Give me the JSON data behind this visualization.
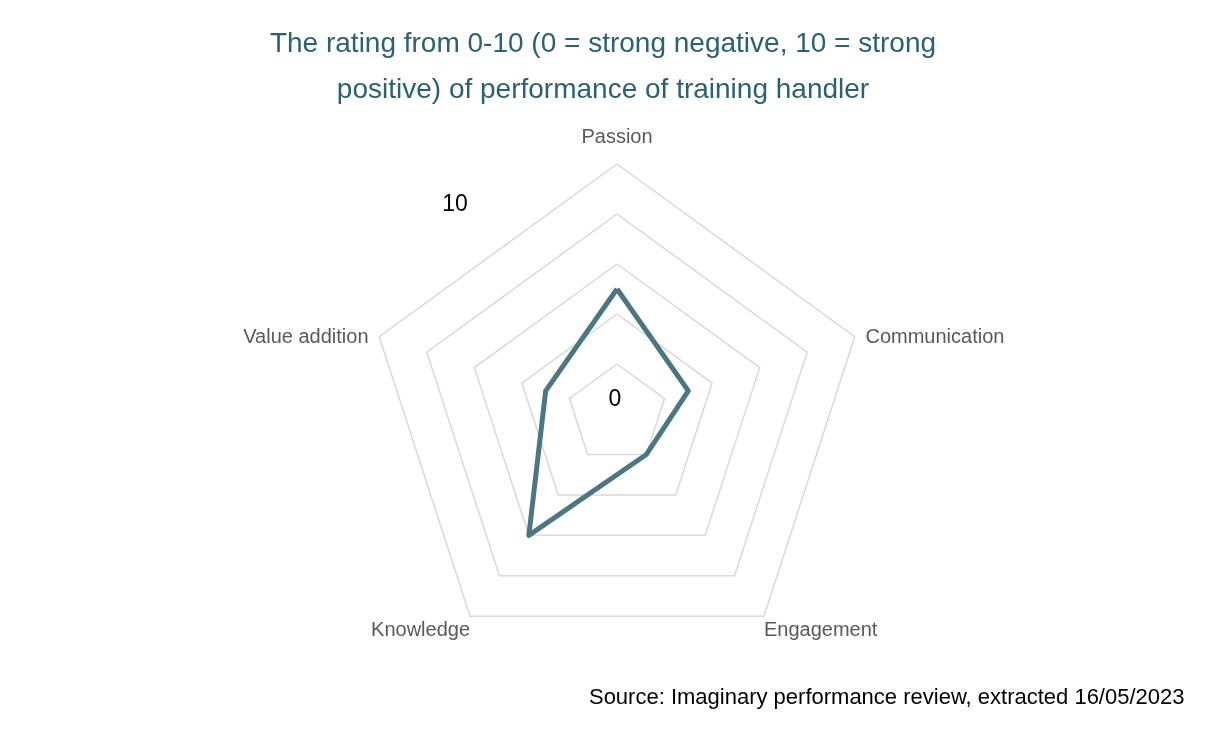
{
  "chart_data": {
    "type": "radar",
    "title": "The rating from 0-10 (0 = strong negative, 10 = strong positive) of performance of training handler",
    "categories": [
      "Passion",
      "Communication",
      "Engagement",
      "Knowledge",
      "Value addition"
    ],
    "series": [
      {
        "color": "#4a7782",
        "values": [
          5,
          3,
          2,
          6,
          3
        ]
      }
    ],
    "ylim": [
      0,
      10
    ],
    "yticks": [
      0,
      10
    ],
    "grid": true,
    "line_style": "solid",
    "annotations": [
      "Source: Imaginary performance review, extracted 16/05/2023"
    ]
  }
}
